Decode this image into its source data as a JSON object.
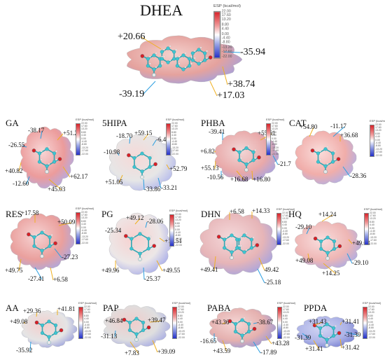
{
  "colorbar": {
    "title": "ESP (kcal/mol)",
    "ticks": [
      "22.00",
      "17.60",
      "13.20",
      "8.80",
      "4.40",
      "0.00",
      "-4.40",
      "-8.80",
      "-13.20",
      "-17.60",
      "-22.00"
    ]
  },
  "panels": [
    {
      "name": "DHEA",
      "values": [
        "+20.66",
        "-35.94",
        "+38.74",
        "-39.19",
        "+17.03"
      ]
    },
    {
      "name": "GA",
      "values": [
        "-38.17",
        "+51.27",
        "-26.55",
        "+40.82",
        "+62.17",
        "-12.60",
        "+45.03"
      ]
    },
    {
      "name": "5HIPA",
      "values": [
        "-18.70",
        "+59.15",
        "-6.44",
        "-10.98",
        "+52.79",
        "+51.05",
        "-33.86",
        "-33.21"
      ]
    },
    {
      "name": "PHBA",
      "values": [
        "-39.41",
        "+55.61",
        "+6.82",
        "+55.13",
        "-21.7",
        "-10.56",
        "+16.68",
        "+16.80"
      ]
    },
    {
      "name": "CAT",
      "values": [
        "+54.80",
        "-11.17",
        "+36.68",
        "-28.36"
      ]
    },
    {
      "name": "RES",
      "values": [
        "+17.58",
        "+50.09",
        "+49.75",
        "-27.23",
        "-27.41",
        "+6.58"
      ]
    },
    {
      "name": "PG",
      "values": [
        "+49.12",
        "-28.06",
        "-25.34",
        "+11.51",
        "+49.96",
        "+49.55",
        "-25.37"
      ]
    },
    {
      "name": "DHN",
      "values": [
        "+6.58",
        "+14.33",
        "+49.41",
        "49.42",
        "-25.18"
      ]
    },
    {
      "name": "HQ",
      "values": [
        "+14.24",
        "-29.10",
        "+49.08",
        "+49.08",
        "+14.25",
        "-29.10"
      ]
    },
    {
      "name": "AA",
      "values": [
        "+29.36",
        "+41.81",
        "+49.08",
        "-35.92"
      ]
    },
    {
      "name": "PAP",
      "values": [
        "+46.84",
        "+39.47",
        "-31.13",
        "+7.83",
        "+39.09"
      ]
    },
    {
      "name": "PABA",
      "values": [
        "+43.36",
        "-38.67",
        "-16.65",
        "+43.28",
        "+43.59",
        "-17.89"
      ]
    },
    {
      "name": "PPDA",
      "values": [
        "+31.43",
        "+31.41",
        "-31.39",
        "-31.39",
        "+31.41",
        "+31.42"
      ]
    }
  ]
}
